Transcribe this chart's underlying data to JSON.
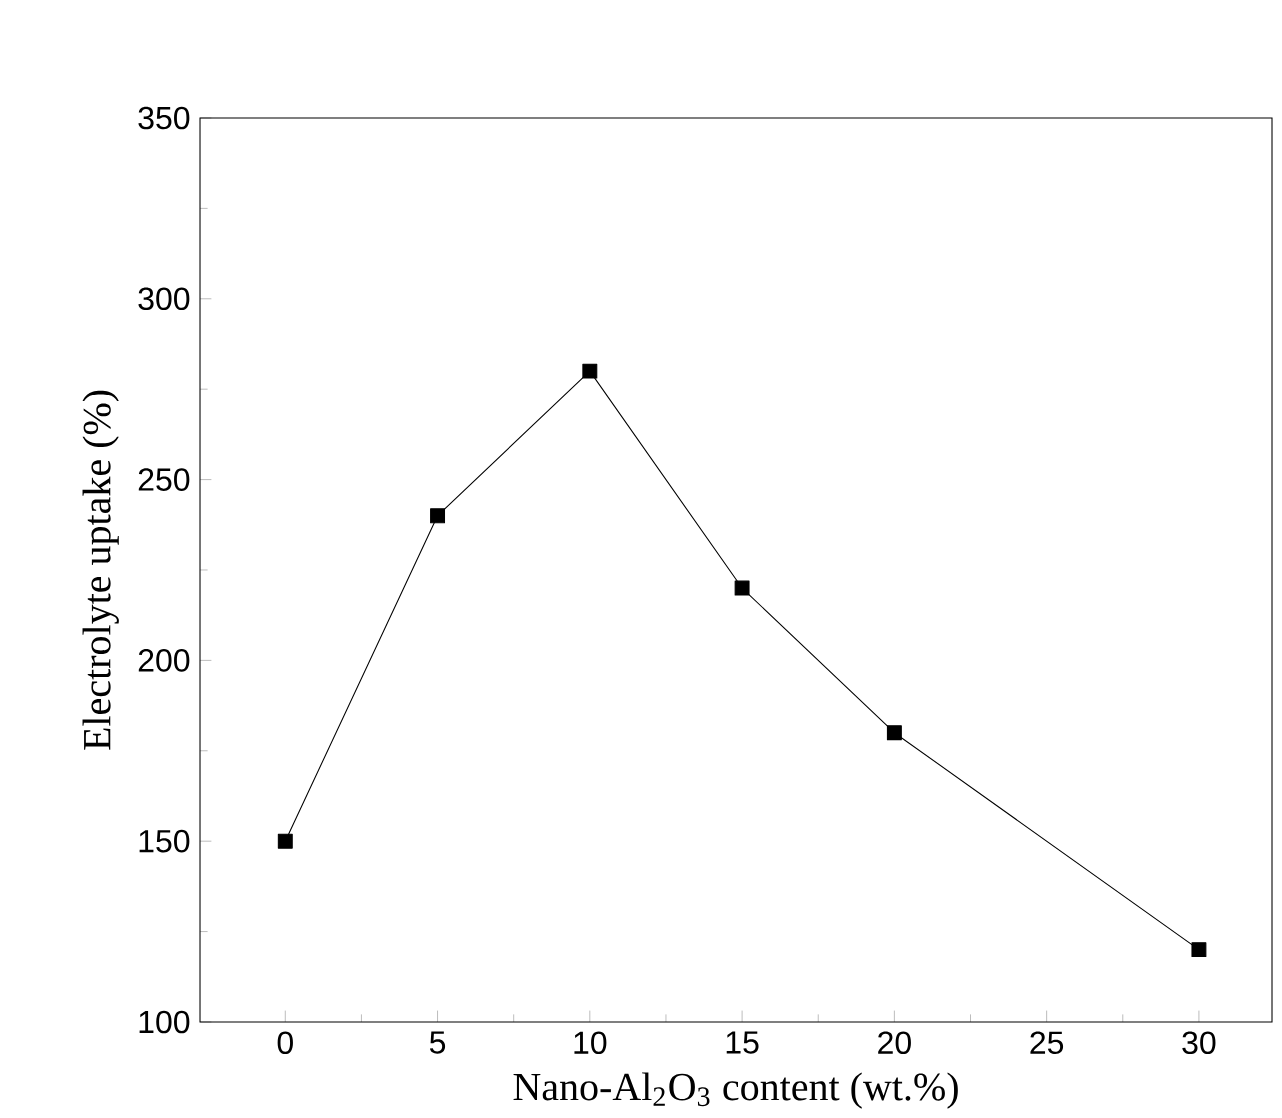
{
  "chart_data": {
    "type": "line",
    "xlabel": "Nano-Al$_{2}$O$_{3}$ content (wt.%)",
    "ylabel": "Electrolyte uptake (%)",
    "x": [
      0,
      5,
      10,
      15,
      20,
      30
    ],
    "series": [
      {
        "color": "#000000",
        "values": [
          150,
          240,
          280,
          220,
          180,
          120
        ]
      }
    ],
    "xlim": [
      -2.8,
      32.4
    ],
    "ylim": [
      100,
      350
    ],
    "xticks": [
      0,
      5,
      10,
      15,
      20,
      25,
      30
    ],
    "yticks": [
      100,
      150,
      200,
      250,
      300,
      350
    ],
    "marker": "square",
    "line_style": "solid"
  }
}
